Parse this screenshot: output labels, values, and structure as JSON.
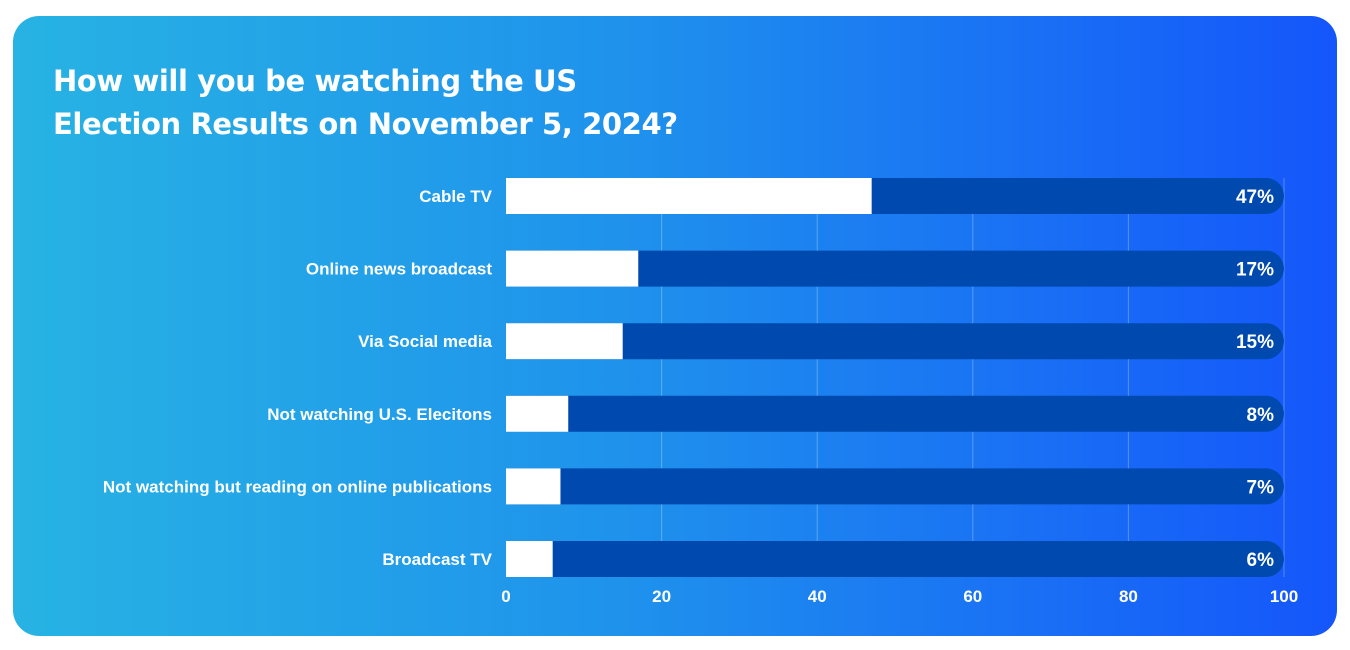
{
  "title_lines": [
    "How will you be watching the US",
    "Election Results on November 5, 2024?"
  ],
  "colors": {
    "background_gradient": [
      "#27b3e3",
      "#1f93ec",
      "#1556fb"
    ],
    "bar_fill": "#ffffff",
    "bar_track": "#0049ae",
    "text": "#ffffff"
  },
  "chart_data": {
    "type": "bar",
    "orientation": "horizontal",
    "title": "How will you be watching the US Election Results on November 5, 2024?",
    "categories": [
      "Cable TV",
      "Online news broadcast",
      "Via Social media",
      "Not watching U.S. Elecitons",
      "Not watching but reading on online publications",
      "Broadcast TV"
    ],
    "values": [
      47,
      17,
      15,
      8,
      7,
      6
    ],
    "value_labels": [
      "47%",
      "17%",
      "15%",
      "8%",
      "7%",
      "6%"
    ],
    "xlim": [
      0,
      100
    ],
    "xticks": [
      "0",
      "20",
      "40",
      "60",
      "80",
      "100"
    ],
    "grid": "vertical",
    "legend": "none"
  }
}
